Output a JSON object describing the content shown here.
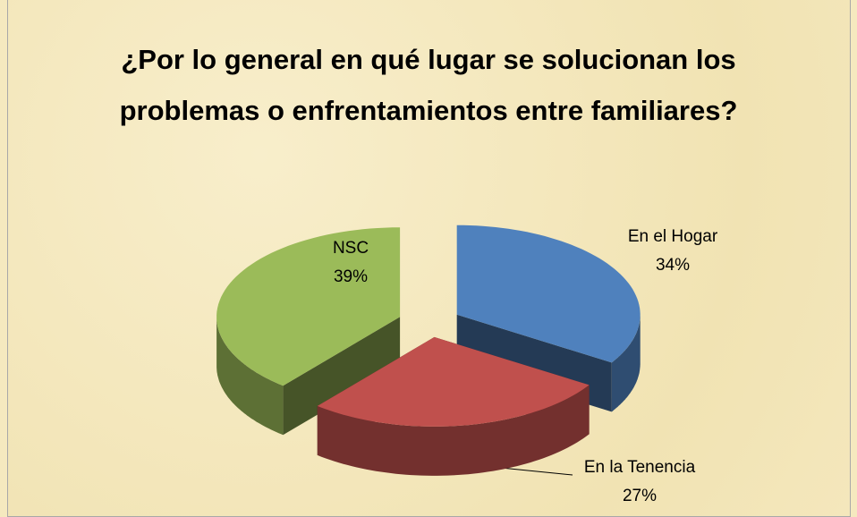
{
  "chart_data": {
    "type": "pie3d",
    "title": "¿Por lo general en qué lugar se solucionan los problemas o enfrentamientos entre familiares?",
    "categories": [
      "En el Hogar",
      "En la Tenencia",
      "NSC"
    ],
    "values": [
      34,
      27,
      39
    ],
    "value_labels": [
      "34%",
      "27%",
      "39%"
    ],
    "colors": [
      "#4f81bd",
      "#c0504d",
      "#9bbb59"
    ]
  }
}
